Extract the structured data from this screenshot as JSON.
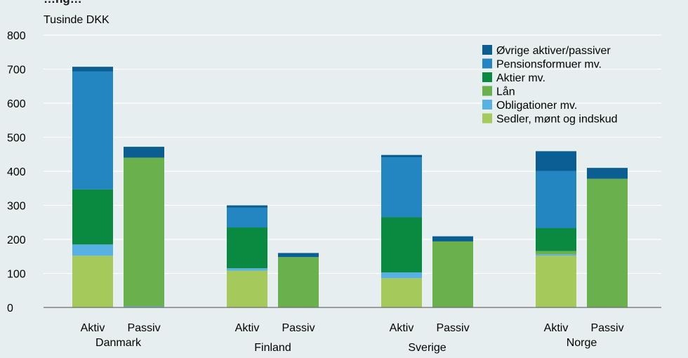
{
  "chart_data": {
    "type": "bar",
    "stacked": true,
    "title": "…ng…",
    "ylabel": "Tusinde DKK",
    "ylim": [
      0,
      800
    ],
    "yticks": [
      0,
      100,
      200,
      300,
      400,
      500,
      600,
      700,
      800
    ],
    "grid": true,
    "legend_position": "top-right",
    "groups": [
      {
        "label": "Danmark",
        "bars": [
          "Aktiv",
          "Passiv"
        ]
      },
      {
        "label": "Finland",
        "bars": [
          "Aktiv",
          "Passiv"
        ]
      },
      {
        "label": "Sverige",
        "bars": [
          "Aktiv",
          "Passiv"
        ]
      },
      {
        "label": "Norge",
        "bars": [
          "Aktiv",
          "Passiv"
        ]
      }
    ],
    "series": [
      {
        "name": "Sedler, mønt og indskud",
        "color": "#a5c95a",
        "values": [
          [
            152,
            0
          ],
          [
            108,
            0
          ],
          [
            86,
            0
          ],
          [
            152,
            0
          ]
        ]
      },
      {
        "name": "Obligationer mv.",
        "color": "#58b1e3",
        "values": [
          [
            33,
            3
          ],
          [
            7,
            0
          ],
          [
            17,
            0
          ],
          [
            4,
            0
          ]
        ]
      },
      {
        "name": "Lån",
        "color": "#6ab14e",
        "values": [
          [
            0,
            437
          ],
          [
            0,
            148
          ],
          [
            0,
            194
          ],
          [
            10,
            378
          ]
        ]
      },
      {
        "name": "Aktier mv.",
        "color": "#0a8940",
        "values": [
          [
            162,
            0
          ],
          [
            120,
            0
          ],
          [
            162,
            0
          ],
          [
            67,
            0
          ]
        ]
      },
      {
        "name": "Pensionsformuer mv.",
        "color": "#2386c0",
        "values": [
          [
            346,
            0
          ],
          [
            58,
            0
          ],
          [
            176,
            0
          ],
          [
            168,
            0
          ]
        ]
      },
      {
        "name": "Øvrige aktiver/passiver",
        "color": "#0b5e91",
        "values": [
          [
            14,
            32
          ],
          [
            7,
            12
          ],
          [
            7,
            15
          ],
          [
            58,
            32
          ]
        ]
      }
    ]
  }
}
